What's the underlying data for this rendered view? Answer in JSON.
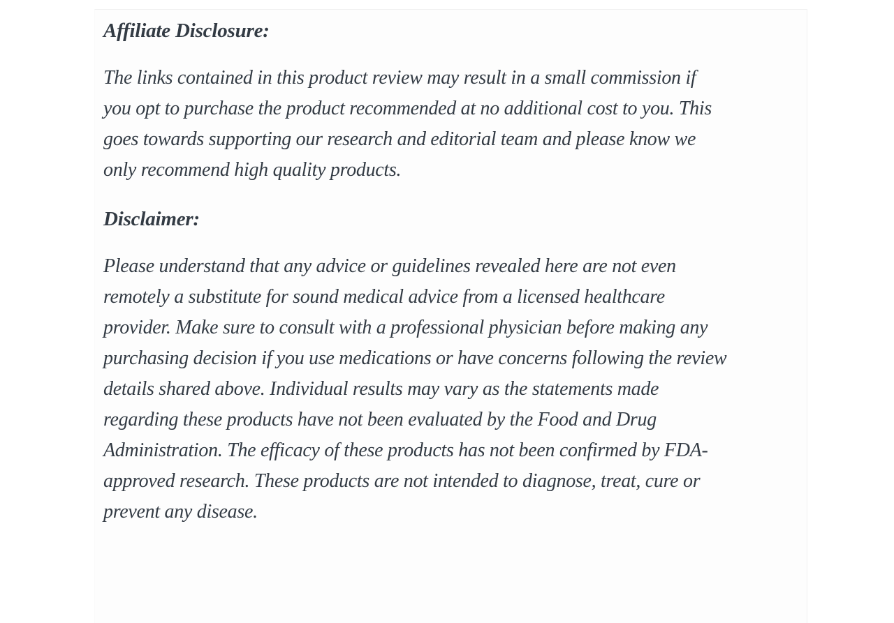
{
  "theme": {
    "page_background": "#ffffff",
    "panel_background": "#fdfdfd",
    "panel_border_color": "#f1f1f1",
    "text_color": "#333b44"
  },
  "content": {
    "affiliate": {
      "heading": "Affiliate Disclosure:",
      "lines": [
        "The links contained in this product review may result in a small commission if",
        "you opt to purchase the product recommended at no additional cost to you. This",
        "goes towards supporting our research and editorial team and please know we",
        "only recommend high quality products."
      ]
    },
    "disclaimer": {
      "heading": "Disclaimer:",
      "lines": [
        "Please understand that any advice or guidelines revealed here are not even",
        "remotely a substitute for sound medical advice from a licensed healthcare",
        "provider. Make sure to consult with a professional physician before making any",
        "purchasing decision if you use medications or have concerns following the review",
        "details shared above. Individual results may vary as the statements made",
        "regarding these products have not been evaluated by the Food and Drug",
        "Administration. The efficacy of these products has not been confirmed by FDA-",
        "approved research. These products are not intended to diagnose, treat, cure or",
        "prevent any disease."
      ]
    }
  }
}
